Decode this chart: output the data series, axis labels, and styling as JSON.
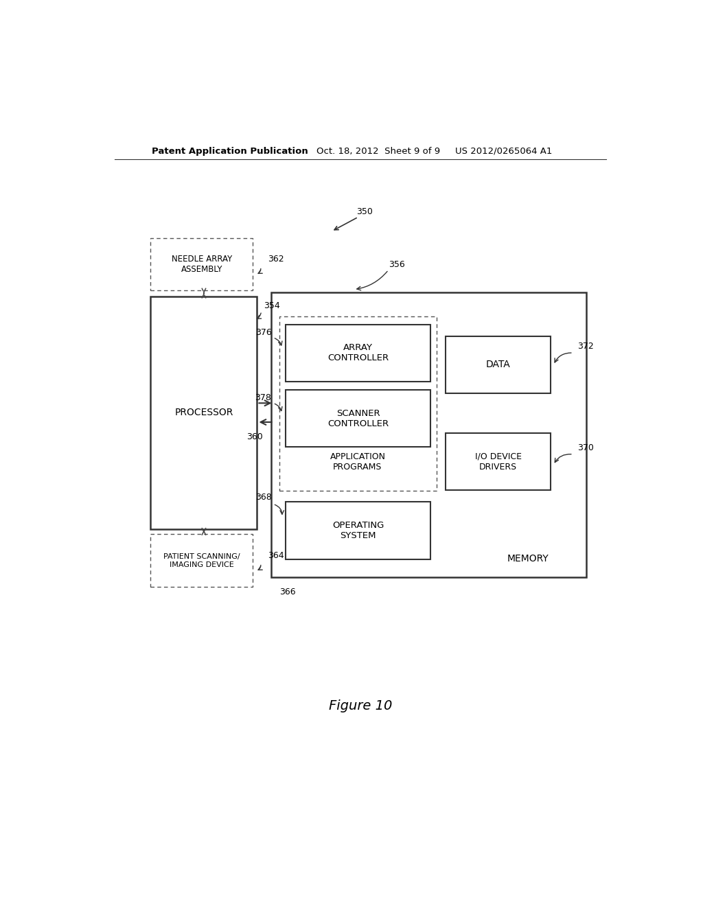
{
  "bg_color": "#ffffff",
  "header_left": "Patent Application Publication",
  "header_center": "Oct. 18, 2012  Sheet 9 of 9",
  "header_right": "US 2012/0265064 A1",
  "figure_label": "Figure 10",
  "system_label": "350",
  "processor_label": "PROCESSOR",
  "processor_label_num": "354",
  "needle_label": "NEEDLE ARRAY\nASSEMBLY",
  "needle_label_num": "362",
  "patient_label": "PATIENT SCANNING/\nIMAGING DEVICE",
  "patient_label_num": "364",
  "memory_outer_label": "MEMORY",
  "memory_outer_label_num": "356",
  "memory_label_num2": "366",
  "array_ctrl_label": "ARRAY\nCONTROLLER",
  "array_ctrl_num": "376",
  "scanner_ctrl_label": "SCANNER\nCONTROLLER",
  "scanner_ctrl_num": "378",
  "app_prog_label": "APPLICATION\nPROGRAMS",
  "app_prog_group_num": "360",
  "os_label": "OPERATING\nSYSTEM",
  "os_num": "368",
  "data_label": "DATA",
  "data_num": "372",
  "io_label": "I/O DEVICE\nDRIVERS",
  "io_num": "370"
}
